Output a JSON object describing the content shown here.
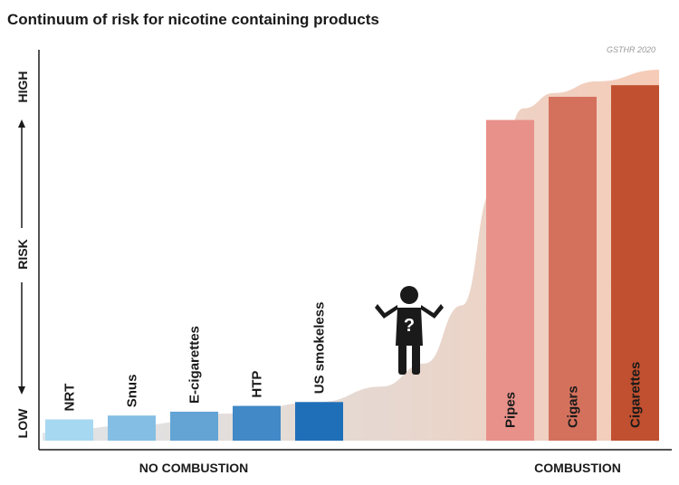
{
  "title": "Continuum of risk for nicotine containing products",
  "source": "GSTHR 2020",
  "colors": {
    "no_combustion_light": "#a7d8f2",
    "no_combustion_dark": "#1f6fb8",
    "combustion_light": "#e8918a",
    "combustion_dark": "#c0502f",
    "curve_left": "#dfe4e8",
    "curve_right": "#f3c7b5",
    "axis": "#1a1a1a"
  },
  "chart_data": {
    "type": "bar",
    "y_axis": {
      "low": "LOW",
      "mid": "RISK",
      "high": "HIGH"
    },
    "groups": [
      {
        "label": "NO COMBUSTION",
        "categories": [
          "NRT",
          "Snus",
          "E-cigarettes",
          "HTP",
          "US smokeless"
        ]
      },
      {
        "label": "COMBUSTION",
        "categories": [
          "Pipes",
          "Cigars",
          "Cigarettes"
        ]
      }
    ],
    "categories": [
      "NRT",
      "Snus",
      "E-cigarettes",
      "HTP",
      "US smokeless",
      "Pipes",
      "Cigars",
      "Cigarettes"
    ],
    "values": [
      5.5,
      6.5,
      7.5,
      9,
      10,
      83,
      89,
      92
    ],
    "ylim": [
      0,
      100
    ],
    "curve": {
      "x": [
        0,
        15,
        30,
        45,
        55,
        62,
        68,
        73,
        78,
        83,
        90,
        100
      ],
      "y": [
        2,
        4,
        7,
        10,
        14,
        20,
        35,
        65,
        86,
        90,
        93,
        96
      ]
    },
    "annotation": {
      "icon": "person-question-icon",
      "position": "gap between groups"
    }
  }
}
